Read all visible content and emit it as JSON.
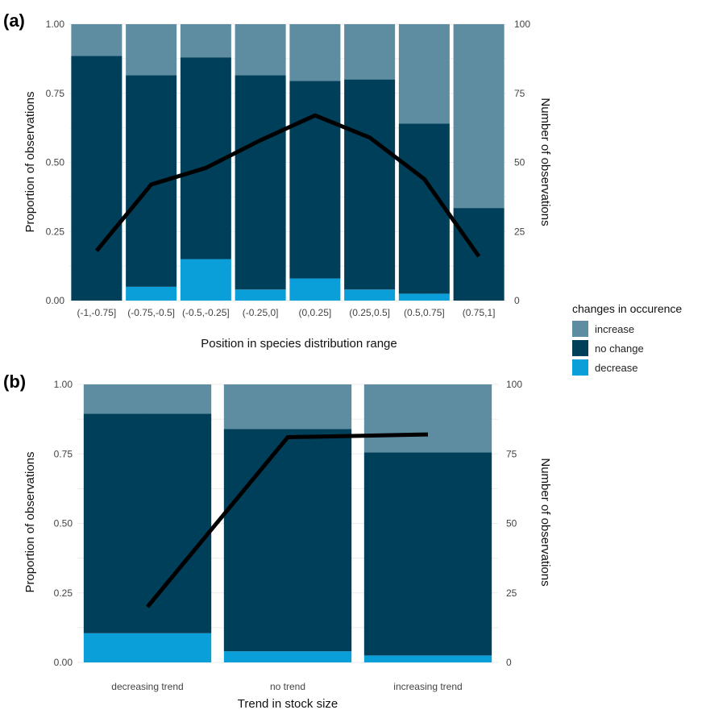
{
  "legend": {
    "title": "changes in occurence",
    "items": [
      {
        "key": "increase",
        "label": "increase"
      },
      {
        "key": "no_change",
        "label": "no change"
      },
      {
        "key": "decrease",
        "label": "decrease"
      }
    ]
  },
  "colors": {
    "increase": "#5e8ca0",
    "no_change": "#003f5a",
    "decrease": "#0b9fda",
    "line": "#000000"
  },
  "chart_data": [
    {
      "type": "bar",
      "subtype": "stacked-proportion-with-line",
      "panel_label": "(a)",
      "xlabel": "Position in species distribution range",
      "ylabel": "Proportion of observations",
      "y2label": "Number of observations",
      "ylim": [
        0,
        1
      ],
      "y2lim": [
        0,
        100
      ],
      "yticks": [
        "0.00",
        "0.25",
        "0.50",
        "0.75",
        "1.00"
      ],
      "y2ticks": [
        "0",
        "25",
        "50",
        "75",
        "100"
      ],
      "categories": [
        "(-1,-0.75]",
        "(-0.75,-0.5]",
        "(-0.5,-0.25]",
        "(-0.25,0]",
        "(0,0.25]",
        "(0.25,0.5]",
        "(0.5,0.75]",
        "(0.75,1]"
      ],
      "series": [
        {
          "name": "decrease",
          "values": [
            0.0,
            0.05,
            0.15,
            0.04,
            0.08,
            0.04,
            0.025,
            0.0
          ]
        },
        {
          "name": "no change",
          "values": [
            0.885,
            0.765,
            0.73,
            0.775,
            0.715,
            0.76,
            0.615,
            0.335
          ]
        },
        {
          "name": "increase",
          "values": [
            0.115,
            0.185,
            0.12,
            0.185,
            0.205,
            0.2,
            0.36,
            0.665
          ]
        }
      ],
      "line": {
        "name": "Number of observations",
        "values": [
          18,
          42,
          48,
          58,
          67,
          59,
          44,
          16
        ]
      }
    },
    {
      "type": "bar",
      "subtype": "stacked-proportion-with-line",
      "panel_label": "(b)",
      "xlabel": "Trend in stock size",
      "ylabel": "Proportion of observations",
      "y2label": "Number of observations",
      "ylim": [
        0,
        1
      ],
      "y2lim": [
        0,
        100
      ],
      "yticks": [
        "0.00",
        "0.25",
        "0.50",
        "0.75",
        "1.00"
      ],
      "y2ticks": [
        "0",
        "25",
        "50",
        "75",
        "100"
      ],
      "categories": [
        "decreasing trend",
        "no trend",
        "increasing trend"
      ],
      "series": [
        {
          "name": "decrease",
          "values": [
            0.105,
            0.04,
            0.025
          ]
        },
        {
          "name": "no change",
          "values": [
            0.79,
            0.8,
            0.73
          ]
        },
        {
          "name": "increase",
          "values": [
            0.105,
            0.16,
            0.245
          ]
        }
      ],
      "line": {
        "name": "Number of observations",
        "values": [
          20,
          81,
          82
        ]
      }
    }
  ]
}
